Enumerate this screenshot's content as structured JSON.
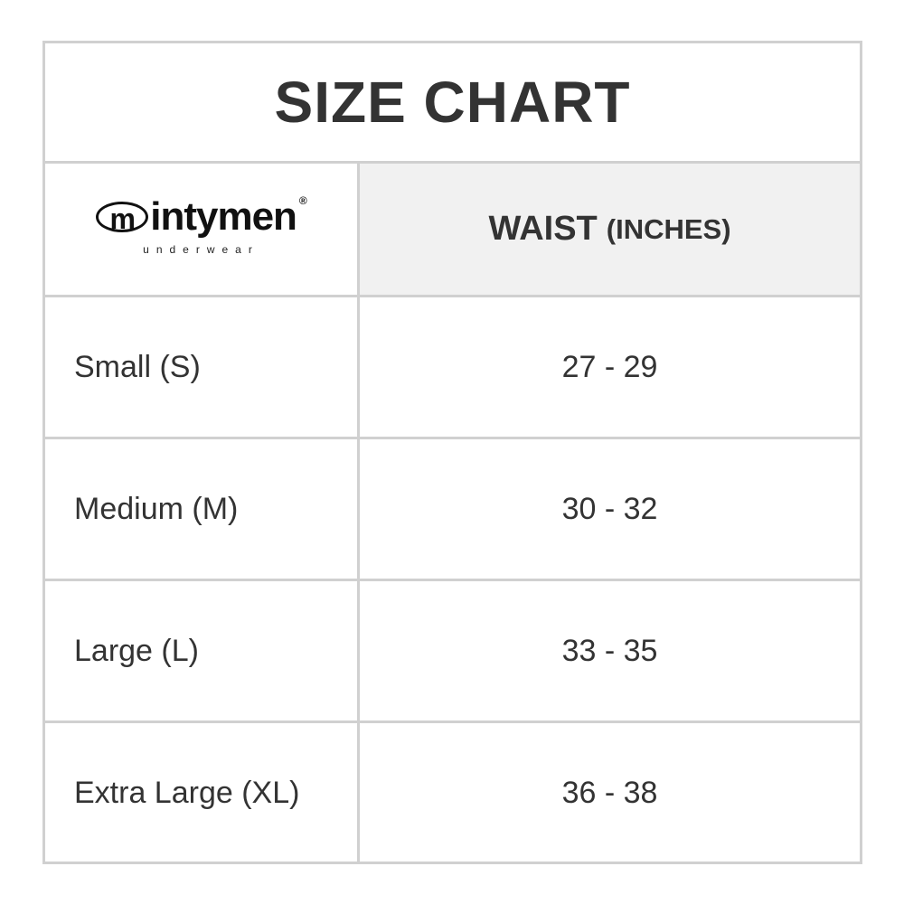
{
  "title": "SIZE CHART",
  "logo": {
    "brand": "mintymen",
    "brand_rest": "intymen",
    "registered": "®",
    "tagline": "underwear"
  },
  "header": {
    "measure": "WAIST",
    "unit": "(INCHES)"
  },
  "rows": [
    {
      "size": "Small (S)",
      "waist": "27 - 29"
    },
    {
      "size": "Medium (M)",
      "waist": "30 - 32"
    },
    {
      "size": "Large (L)",
      "waist": "33 - 35"
    },
    {
      "size": "Extra Large (XL)",
      "waist": "36 - 38"
    }
  ],
  "colors": {
    "border": "#d0d0d0",
    "header_bg": "#f1f1f1",
    "text": "#333333"
  }
}
